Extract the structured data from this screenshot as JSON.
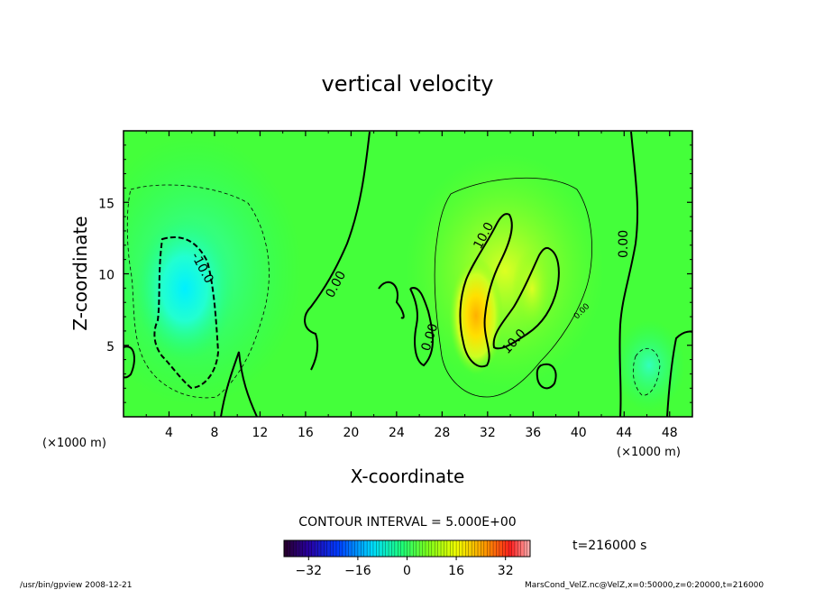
{
  "chart_data": {
    "type": "heatmap",
    "title": "vertical velocity",
    "xlabel": "X-coordinate",
    "ylabel": "Z-coordinate",
    "x_unit": "(×1000 m)",
    "z_unit": "(×1000 m)",
    "xlim": [
      0,
      50
    ],
    "ylim": [
      0,
      20
    ],
    "x_ticks": [
      "4",
      "8",
      "12",
      "16",
      "20",
      "24",
      "28",
      "32",
      "36",
      "40",
      "44",
      "48"
    ],
    "y_ticks": [
      "5",
      "10",
      "15"
    ],
    "contour_interval_text": "CONTOUR INTERVAL = 5.000E+00",
    "contour_labels": [
      "-10.0",
      "0.00",
      "0.00",
      "10.0",
      "10.0",
      "0.00",
      "0.00"
    ],
    "colorbar": {
      "range": [
        -40,
        40
      ],
      "ticks": [
        "−32",
        "−16",
        "0",
        "16",
        "32"
      ]
    },
    "time_text": "t=216000 s",
    "footer_left": "/usr/bin/gpview   2008-12-21",
    "footer_right": "MarsCond_VelZ.nc@VelZ,x=0:50000,z=0:20000,t=216000",
    "features": [
      {
        "type": "downdraft",
        "x": 6,
        "z": 8,
        "value": -17
      },
      {
        "type": "updraft",
        "x": 31,
        "z": 7,
        "value": 25
      },
      {
        "type": "updraft",
        "x": 36,
        "z": 10,
        "value": 14
      },
      {
        "type": "downdraft",
        "x": 46,
        "z": 4,
        "value": -6
      }
    ]
  }
}
